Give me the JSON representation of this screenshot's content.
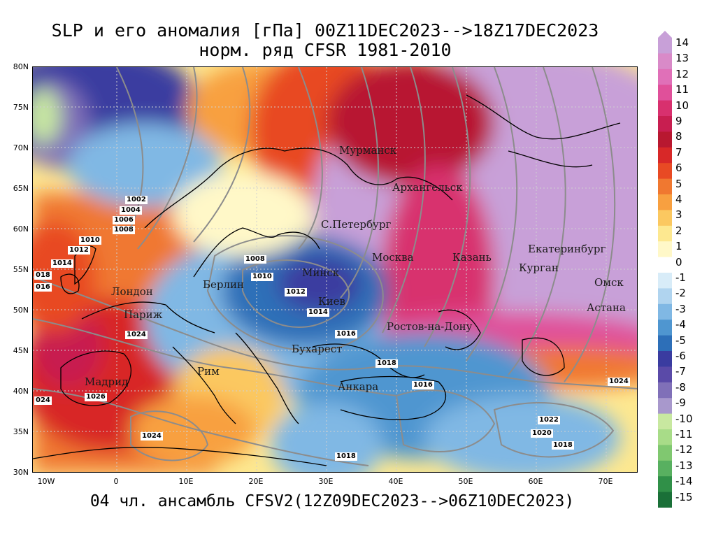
{
  "title": {
    "line1": "SLP и его аномалия [гПа] 00Z11DEC2023-->18Z17DEC2023",
    "line2": "норм. ряд CFSR 1981-2010"
  },
  "footer": "04 чл. ансамбль CFSV2(12Z09DEC2023-->06Z10DEC2023)",
  "map": {
    "lat_labels": [
      "80N",
      "75N",
      "70N",
      "65N",
      "60N",
      "55N",
      "50N",
      "45N",
      "40N",
      "35N",
      "30N"
    ],
    "lon_labels": [
      "10W",
      "0",
      "10E",
      "20E",
      "30E",
      "40E",
      "50E",
      "60E",
      "70E"
    ],
    "cities": [
      {
        "name": "Мурманск"
      },
      {
        "name": "Архангельск"
      },
      {
        "name": "С.Петербург"
      },
      {
        "name": "Москва"
      },
      {
        "name": "Казань"
      },
      {
        "name": "Екатеринбург"
      },
      {
        "name": "Курган"
      },
      {
        "name": "Омск"
      },
      {
        "name": "Астана"
      },
      {
        "name": "Минск"
      },
      {
        "name": "Киев"
      },
      {
        "name": "Берлин"
      },
      {
        "name": "Лондон"
      },
      {
        "name": "Париж"
      },
      {
        "name": "Ростов-на-Дону"
      },
      {
        "name": "Бухарест"
      },
      {
        "name": "Рим"
      },
      {
        "name": "Мадрид"
      },
      {
        "name": "Анкара"
      }
    ],
    "isobar_labels": [
      "1002",
      "1004",
      "1006",
      "1008",
      "1010",
      "1012",
      "1014",
      "1016",
      "1018",
      "1024",
      "1026",
      "1020",
      "1022",
      "1008",
      "1010",
      "1012",
      "1014",
      "1016",
      "1018",
      "1018",
      "1024",
      "1024",
      "1018",
      "1024",
      "1022",
      "1020",
      "1018",
      "018",
      "016",
      "024"
    ]
  },
  "colorbar": {
    "labels": [
      "14",
      "13",
      "12",
      "11",
      "10",
      "9",
      "8",
      "7",
      "6",
      "5",
      "4",
      "3",
      "2",
      "1",
      "0",
      "-1",
      "-2",
      "-3",
      "-4",
      "-5",
      "-6",
      "-7",
      "-8",
      "-9",
      "-10",
      "-11",
      "-12",
      "-13",
      "-14",
      "-15"
    ],
    "colors": [
      "#c8a0d8",
      "#d98ac8",
      "#e070b8",
      "#e0509a",
      "#d8306e",
      "#c81e50",
      "#b81830",
      "#d82828",
      "#e84a24",
      "#f07830",
      "#f8a040",
      "#fbc860",
      "#fde890",
      "#fff8c8",
      "#ffffff",
      "#d8ecf8",
      "#b0d4ef",
      "#80b8e4",
      "#4f96d0",
      "#2d6fb8",
      "#3a3ca0",
      "#5a4aa8",
      "#8070b8",
      "#a898cc",
      "#c8e8a0",
      "#a8dc88",
      "#80c870",
      "#58b060",
      "#309048",
      "#1a7038"
    ]
  }
}
